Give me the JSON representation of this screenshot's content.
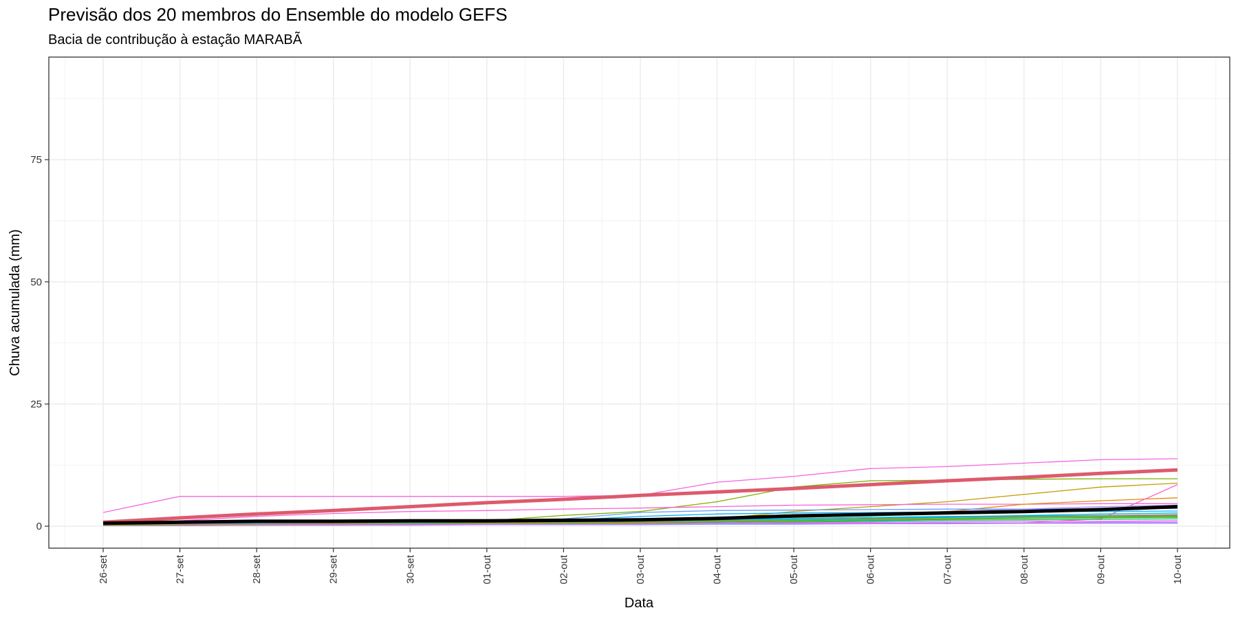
{
  "chart_data": {
    "type": "line",
    "title": "Previsão dos 20 membros do Ensemble do modelo GEFS",
    "subtitle": "Bacia de contribução à estação MARABÃ",
    "xlabel": "Data",
    "ylabel": "Chuva acumulada (mm)",
    "categories": [
      "26-set",
      "27-set",
      "28-set",
      "29-set",
      "30-set",
      "01-out",
      "02-out",
      "03-out",
      "04-out",
      "05-out",
      "06-out",
      "07-out",
      "08-out",
      "09-out",
      "10-out"
    ],
    "yticks": [
      0,
      25,
      50,
      75
    ],
    "ylim": [
      -4.5,
      96
    ],
    "grid": true,
    "legend": "none",
    "series": [
      {
        "color": "#f564e3",
        "width": 1.3,
        "values": [
          2.8,
          6.1,
          6.1,
          6.1,
          6.1,
          6.1,
          6.1,
          6.3,
          9.0,
          10.2,
          11.8,
          12.2,
          12.9,
          13.6,
          13.8
        ]
      },
      {
        "color": "#7cae00",
        "width": 1.3,
        "values": [
          0.4,
          0.7,
          0.8,
          0.9,
          1.0,
          1.1,
          2.2,
          3.0,
          5.0,
          8.0,
          9.3,
          9.4,
          9.6,
          9.7,
          9.7
        ]
      },
      {
        "color": "#c49a00",
        "width": 1.3,
        "values": [
          0.2,
          0.3,
          0.4,
          0.5,
          0.6,
          0.7,
          0.8,
          1.0,
          1.5,
          3.0,
          4.0,
          5.0,
          6.5,
          8.0,
          8.8
        ]
      },
      {
        "color": "#fb61d7",
        "width": 1.3,
        "values": [
          0.9,
          1.1,
          2.0,
          2.6,
          3.0,
          3.2,
          3.5,
          3.7,
          4.0,
          4.3,
          4.4,
          4.5,
          4.5,
          4.6,
          4.6
        ]
      },
      {
        "color": "#e58700",
        "width": 1.3,
        "values": [
          0.3,
          0.4,
          0.5,
          0.6,
          0.7,
          0.8,
          0.9,
          1.0,
          1.3,
          1.8,
          2.2,
          3.0,
          4.5,
          5.2,
          5.8
        ]
      },
      {
        "color": "#ff61c3",
        "width": 1.3,
        "values": [
          0.1,
          0.1,
          0.2,
          0.2,
          0.3,
          0.3,
          0.3,
          0.4,
          0.5,
          0.5,
          0.6,
          0.6,
          0.7,
          1.5,
          8.5
        ]
      },
      {
        "color": "#619cff",
        "width": 1.3,
        "values": [
          0.5,
          0.6,
          0.8,
          1.0,
          1.2,
          1.3,
          1.5,
          2.8,
          3.2,
          3.3,
          3.4,
          3.5,
          3.5,
          3.6,
          3.6
        ]
      },
      {
        "color": "#00b0f6",
        "width": 1.3,
        "values": [
          0.4,
          0.5,
          0.6,
          0.7,
          0.8,
          0.9,
          1.2,
          2.0,
          2.5,
          2.7,
          2.8,
          2.9,
          3.0,
          3.0,
          3.1
        ]
      },
      {
        "color": "#00bfc4",
        "width": 1.3,
        "values": [
          0.2,
          0.3,
          0.3,
          0.4,
          0.5,
          0.6,
          0.7,
          0.9,
          1.1,
          1.3,
          1.6,
          1.9,
          2.2,
          2.5,
          2.7
        ]
      },
      {
        "color": "#00c08b",
        "width": 1.3,
        "values": [
          0.2,
          0.2,
          0.3,
          0.3,
          0.4,
          0.4,
          0.5,
          0.6,
          0.8,
          1.0,
          1.2,
          1.4,
          1.6,
          1.8,
          2.0
        ]
      },
      {
        "color": "#00be67",
        "width": 1.3,
        "values": [
          0.1,
          0.2,
          0.2,
          0.3,
          0.3,
          0.4,
          0.4,
          0.5,
          0.6,
          0.8,
          1.0,
          1.2,
          1.3,
          1.4,
          1.5
        ]
      },
      {
        "color": "#00c1a9",
        "width": 1.3,
        "values": [
          0.3,
          0.4,
          0.5,
          0.6,
          0.7,
          0.8,
          0.9,
          1.1,
          1.4,
          1.6,
          1.8,
          2.0,
          2.1,
          2.2,
          2.3
        ]
      },
      {
        "color": "#a58aff",
        "width": 1.3,
        "values": [
          0.3,
          0.4,
          0.5,
          0.6,
          0.7,
          0.8,
          0.9,
          1.1,
          1.5,
          2.0,
          2.5,
          3.0,
          3.5,
          4.0,
          4.3
        ]
      },
      {
        "color": "#df70f8",
        "width": 1.3,
        "values": [
          0.1,
          0.2,
          0.2,
          0.3,
          0.3,
          0.4,
          0.4,
          0.5,
          0.6,
          0.7,
          0.8,
          0.9,
          1.0,
          1.0,
          1.1
        ]
      },
      {
        "color": "#f8766d",
        "width": 1.3,
        "values": [
          0.2,
          0.3,
          0.4,
          0.5,
          0.6,
          0.7,
          0.8,
          0.9,
          1.1,
          1.3,
          1.5,
          1.8,
          2.0,
          2.2,
          2.4
        ]
      },
      {
        "color": "#53b400",
        "width": 1.3,
        "values": [
          0.2,
          0.3,
          0.3,
          0.4,
          0.5,
          0.5,
          0.6,
          0.7,
          0.9,
          1.1,
          1.3,
          1.5,
          1.6,
          1.7,
          1.8
        ]
      },
      {
        "color": "#00a9ff",
        "width": 1.3,
        "values": [
          0.3,
          0.3,
          0.4,
          0.5,
          0.6,
          0.7,
          0.8,
          1.0,
          1.2,
          1.4,
          1.6,
          1.8,
          2.0,
          2.1,
          2.2
        ]
      },
      {
        "color": "#8494ff",
        "width": 1.3,
        "values": [
          0.1,
          0.1,
          0.2,
          0.2,
          0.2,
          0.3,
          0.3,
          0.3,
          0.4,
          0.4,
          0.5,
          0.5,
          0.6,
          0.6,
          0.6
        ]
      },
      {
        "color": "#e76bf3",
        "width": 1.3,
        "values": [
          0.2,
          0.2,
          0.3,
          0.3,
          0.3,
          0.4,
          0.4,
          0.5,
          0.5,
          0.6,
          0.6,
          0.7,
          0.7,
          0.8,
          0.8
        ]
      },
      {
        "color": "#aba300",
        "width": 1.3,
        "values": [
          0.2,
          0.3,
          0.4,
          0.5,
          0.5,
          0.6,
          0.7,
          0.8,
          1.0,
          1.2,
          1.4,
          1.6,
          1.8,
          2.0,
          2.1
        ]
      },
      {
        "color": "#dd5a6d",
        "width": 5,
        "values": [
          0.8,
          1.7,
          2.5,
          3.2,
          4.0,
          4.8,
          5.5,
          6.3,
          7.0,
          7.7,
          8.5,
          9.3,
          10.0,
          10.8,
          11.5
        ]
      },
      {
        "color": "#000000",
        "width": 5,
        "values": [
          0.6,
          0.8,
          1.0,
          1.0,
          1.1,
          1.1,
          1.2,
          1.3,
          1.6,
          2.1,
          2.4,
          2.7,
          3.0,
          3.4,
          4.0
        ]
      }
    ]
  }
}
